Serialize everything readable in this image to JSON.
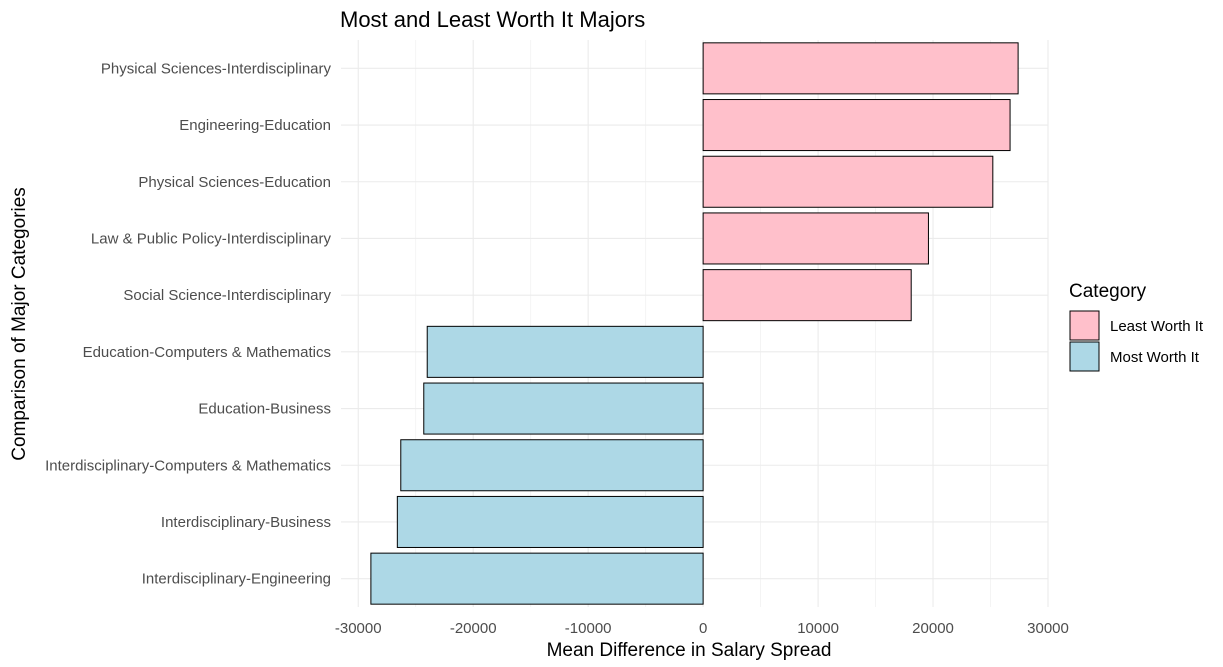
{
  "chart_data": {
    "type": "bar",
    "orientation": "horizontal",
    "title": "Most and Least Worth It Majors",
    "xlabel": "Mean Difference in Salary Spread",
    "ylabel": "Comparison of Major Categories",
    "xlim": [
      -31500,
      30000
    ],
    "x_ticks": [
      -30000,
      -20000,
      -10000,
      0,
      10000,
      20000,
      30000
    ],
    "x_tick_labels": [
      "-30000",
      "-20000",
      "-10000",
      "0",
      "10000",
      "20000",
      "30000"
    ],
    "grid": true,
    "categories": [
      "Physical Sciences-Interdisciplinary",
      "Engineering-Education",
      "Physical Sciences-Education",
      "Law & Public Policy-Interdisciplinary",
      "Social Science-Interdisciplinary",
      "Education-Computers & Mathematics",
      "Education-Business",
      "Interdisciplinary-Computers & Mathematics",
      "Interdisciplinary-Business",
      "Interdisciplinary-Engineering"
    ],
    "values": [
      27400,
      26700,
      25200,
      19600,
      18100,
      -24000,
      -24300,
      -26300,
      -26600,
      -28900
    ],
    "groups": [
      "Least Worth It",
      "Least Worth It",
      "Least Worth It",
      "Least Worth It",
      "Least Worth It",
      "Most Worth It",
      "Most Worth It",
      "Most Worth It",
      "Most Worth It",
      "Most Worth It"
    ],
    "legend": {
      "title": "Category",
      "position": "right",
      "entries": [
        {
          "name": "Least Worth It",
          "color": "#ffc0cb"
        },
        {
          "name": "Most Worth It",
          "color": "#add8e6"
        }
      ]
    }
  }
}
